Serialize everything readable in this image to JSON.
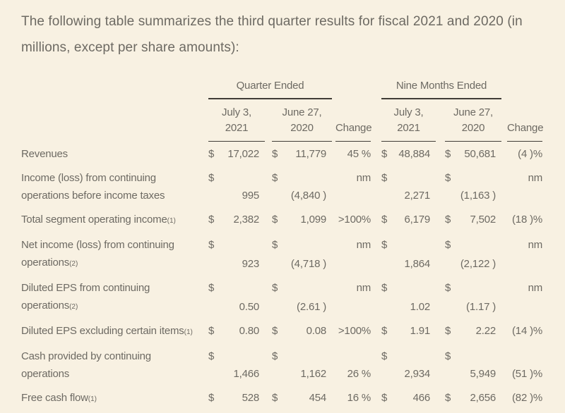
{
  "page": {
    "colors": {
      "background": "#f8f1e2",
      "text": "#6d6a63",
      "line": "#403c36"
    }
  },
  "intro": "The following table summarizes the third quarter results for fiscal 2021 and 2020 (in millions, except per share amounts):",
  "table": {
    "groups": [
      {
        "label": "Quarter Ended"
      },
      {
        "label": "Nine Months Ended"
      }
    ],
    "column_headers": [
      {
        "line1": "July 3,",
        "line2": "2021"
      },
      {
        "line1": "June 27,",
        "line2": "2020"
      },
      {
        "label": "Change"
      },
      {
        "line1": "July 3,",
        "line2": "2021"
      },
      {
        "line1": "June 27,",
        "line2": "2020"
      },
      {
        "label": "Change"
      }
    ],
    "rows": [
      {
        "wrap": false,
        "label_lines": [
          {
            "text": "Revenues"
          }
        ],
        "cells": [
          {
            "kind": "money",
            "sym": "$",
            "val": "17,022"
          },
          {
            "kind": "money",
            "sym": "$",
            "val": "11,779"
          },
          {
            "kind": "change",
            "val": "45 %"
          },
          {
            "kind": "money",
            "sym": "$",
            "val": "48,884"
          },
          {
            "kind": "money",
            "sym": "$",
            "val": "50,681"
          },
          {
            "kind": "change",
            "val": "(4 )%"
          }
        ]
      },
      {
        "wrap": true,
        "label_lines": [
          {
            "text": "Income (loss) from continuing"
          },
          {
            "text": "operations before income taxes"
          }
        ],
        "cells": [
          {
            "kind": "money",
            "sym": "$",
            "val": "995"
          },
          {
            "kind": "money",
            "sym": "$",
            "val": "(4,840 )"
          },
          {
            "kind": "change",
            "val": "nm",
            "top": true
          },
          {
            "kind": "money",
            "sym": "$",
            "val": "2,271"
          },
          {
            "kind": "money",
            "sym": "$",
            "val": "(1,163 )"
          },
          {
            "kind": "change",
            "val": "nm",
            "top": true
          }
        ]
      },
      {
        "wrap": false,
        "label_lines": [
          {
            "text": "Total segment operating income",
            "note": "(1)"
          }
        ],
        "cells": [
          {
            "kind": "money",
            "sym": "$",
            "val": "2,382"
          },
          {
            "kind": "money",
            "sym": "$",
            "val": "1,099"
          },
          {
            "kind": "change",
            "val": ">100%"
          },
          {
            "kind": "money",
            "sym": "$",
            "val": "6,179"
          },
          {
            "kind": "money",
            "sym": "$",
            "val": "7,502"
          },
          {
            "kind": "change",
            "val": "(18 )%"
          }
        ]
      },
      {
        "wrap": true,
        "label_lines": [
          {
            "text": "Net income (loss) from continuing"
          },
          {
            "text": "operations",
            "note": "(2)"
          }
        ],
        "cells": [
          {
            "kind": "money",
            "sym": "$",
            "val": "923"
          },
          {
            "kind": "money",
            "sym": "$",
            "val": "(4,718 )"
          },
          {
            "kind": "change",
            "val": "nm",
            "top": true
          },
          {
            "kind": "money",
            "sym": "$",
            "val": "1,864"
          },
          {
            "kind": "money",
            "sym": "$",
            "val": "(2,122 )"
          },
          {
            "kind": "change",
            "val": "nm",
            "top": true
          }
        ]
      },
      {
        "wrap": true,
        "label_lines": [
          {
            "text": "Diluted EPS from continuing"
          },
          {
            "text": "operations",
            "note": "(2)"
          }
        ],
        "cells": [
          {
            "kind": "money",
            "sym": "$",
            "val": "0.50"
          },
          {
            "kind": "money",
            "sym": "$",
            "val": "(2.61 )"
          },
          {
            "kind": "change",
            "val": "nm",
            "top": true
          },
          {
            "kind": "money",
            "sym": "$",
            "val": "1.02"
          },
          {
            "kind": "money",
            "sym": "$",
            "val": "(1.17 )"
          },
          {
            "kind": "change",
            "val": "nm",
            "top": true
          }
        ]
      },
      {
        "wrap": false,
        "label_lines": [
          {
            "text": "Diluted EPS excluding certain items",
            "note": "(1)"
          }
        ],
        "cells": [
          {
            "kind": "money",
            "sym": "$",
            "val": "0.80"
          },
          {
            "kind": "money",
            "sym": "$",
            "val": "0.08"
          },
          {
            "kind": "change",
            "val": ">100%"
          },
          {
            "kind": "money",
            "sym": "$",
            "val": "1.91"
          },
          {
            "kind": "money",
            "sym": "$",
            "val": "2.22"
          },
          {
            "kind": "change",
            "val": "(14 )%"
          }
        ]
      },
      {
        "wrap": true,
        "label_lines": [
          {
            "text": "Cash provided by continuing"
          },
          {
            "text": "operations"
          }
        ],
        "cells": [
          {
            "kind": "money",
            "sym": "$",
            "val": "1,466"
          },
          {
            "kind": "money",
            "sym": "$",
            "val": "1,162"
          },
          {
            "kind": "change",
            "val": "26 %",
            "top": false
          },
          {
            "kind": "money",
            "sym": "$",
            "val": "2,934"
          },
          {
            "kind": "money",
            "sym": "$",
            "val": "5,949"
          },
          {
            "kind": "change",
            "val": "(51 )%",
            "top": false
          }
        ]
      },
      {
        "wrap": false,
        "label_lines": [
          {
            "text": "Free cash flow",
            "note": "(1)"
          }
        ],
        "cells": [
          {
            "kind": "money",
            "sym": "$",
            "val": "528"
          },
          {
            "kind": "money",
            "sym": "$",
            "val": "454"
          },
          {
            "kind": "change",
            "val": "16 %"
          },
          {
            "kind": "money",
            "sym": "$",
            "val": "466"
          },
          {
            "kind": "money",
            "sym": "$",
            "val": "2,656"
          },
          {
            "kind": "change",
            "val": "(82 )%"
          }
        ]
      }
    ]
  }
}
